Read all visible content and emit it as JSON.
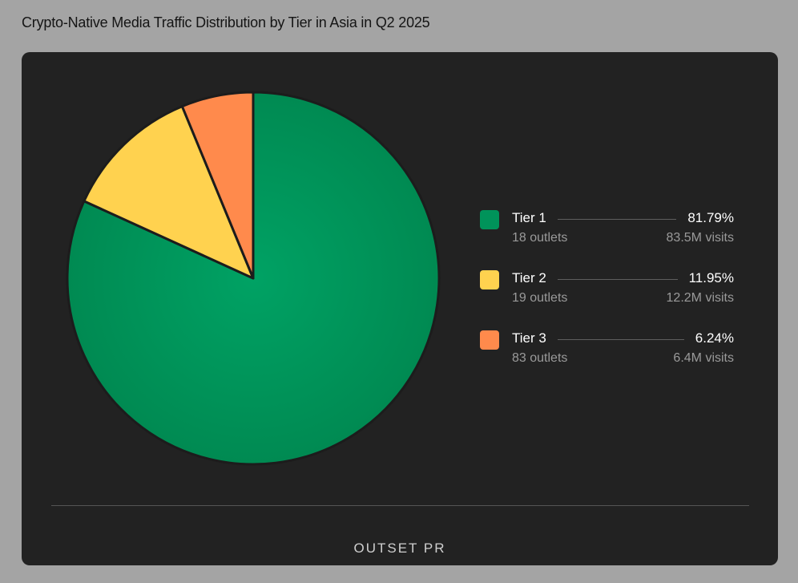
{
  "title": "Crypto-Native Media Traffic Distribution by Tier in Asia in Q2 2025",
  "chart_data": {
    "type": "pie",
    "title": "Crypto-Native Media Traffic Distribution by Tier in Asia in Q2 2025",
    "slices": [
      {
        "label": "Tier 1",
        "value": 81.79,
        "value_label": "81.79%",
        "outlets": "18 outlets",
        "visits": "83.5M visits",
        "color": "#00935a"
      },
      {
        "label": "Tier 2",
        "value": 11.95,
        "value_label": "11.95%",
        "outlets": "19 outlets",
        "visits": "12.2M visits",
        "color": "#ffd24f"
      },
      {
        "label": "Tier 3",
        "value": 6.24,
        "value_label": "6.24%",
        "outlets": "83 outlets",
        "visits": "6.4M visits",
        "color": "#ff8a4c"
      }
    ],
    "start_angle": "12 o'clock",
    "direction": "clockwise",
    "legend_position": "right"
  },
  "brand": "OUTSET PR",
  "colors": {
    "background": "#a4a4a4",
    "card": "#222222",
    "slice_border": "#1c1c1c"
  }
}
